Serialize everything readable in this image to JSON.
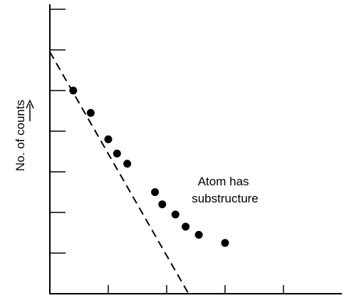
{
  "chart_data": {
    "type": "scatter",
    "title": "",
    "xlabel": "",
    "ylabel": "No. of counts",
    "ylabel_arrow": "up-arrow",
    "xlim": [
      0,
      10
    ],
    "ylim": [
      0,
      7
    ],
    "grid": false,
    "x_ticks": [
      2,
      4,
      6,
      8
    ],
    "y_ticks": [
      1,
      2,
      3,
      4,
      5,
      6,
      7
    ],
    "points": [
      {
        "x": 0.8,
        "y": 5.0
      },
      {
        "x": 1.4,
        "y": 4.45
      },
      {
        "x": 2.0,
        "y": 3.8
      },
      {
        "x": 2.3,
        "y": 3.45
      },
      {
        "x": 2.65,
        "y": 3.2
      },
      {
        "x": 3.6,
        "y": 2.5
      },
      {
        "x": 3.85,
        "y": 2.2
      },
      {
        "x": 4.3,
        "y": 1.95
      },
      {
        "x": 4.65,
        "y": 1.65
      },
      {
        "x": 5.1,
        "y": 1.45
      },
      {
        "x": 6.0,
        "y": 1.25
      }
    ],
    "trend_line": {
      "style": "dashed",
      "x": [
        0,
        4.75
      ],
      "y": [
        5.95,
        0
      ]
    },
    "annotations": [
      {
        "text_lines": [
          "Atom has",
          "substructure"
        ],
        "x": 4.6,
        "y": 2.75
      }
    ]
  }
}
